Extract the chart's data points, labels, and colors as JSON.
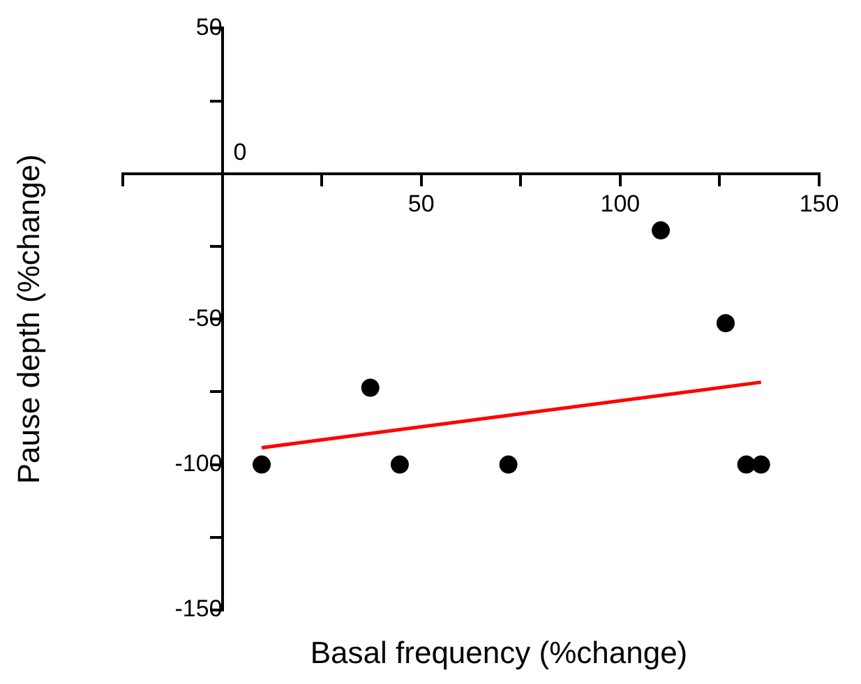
{
  "chart_data": {
    "type": "scatter",
    "xlabel": "Basal frequency (%change)",
    "ylabel": "Pause depth (%change)",
    "xlim": [
      -25,
      150
    ],
    "ylim": [
      -150,
      50
    ],
    "xticks": [
      {
        "value": -25,
        "label": null
      },
      {
        "value": 0,
        "label": null
      },
      {
        "value": 25,
        "label": null
      },
      50,
      {
        "value": 75,
        "label": null
      },
      100,
      {
        "value": 125,
        "label": null
      },
      150
    ],
    "yticks": [
      -150,
      {
        "value": -125,
        "label": null
      },
      -100,
      {
        "value": -75,
        "label": null
      },
      -50,
      {
        "value": -25,
        "label": null
      },
      {
        "value": 0,
        "label": null
      },
      {
        "value": 25,
        "label": null
      },
      50
    ],
    "annotations": [
      "0"
    ],
    "grid": false,
    "legend": false,
    "series": [
      {
        "marker": "circle",
        "color": "#000000",
        "x": [
          9.9,
          37.2,
          44.6,
          71.9,
          110.2,
          126.5,
          131.7,
          135.4
        ],
        "values": [
          -100,
          -73.6,
          -100,
          -100,
          -19.5,
          -51.4,
          -100,
          -100
        ]
      },
      {
        "type": "line",
        "color": "#ff0000",
        "x": [
          9.9,
          135.4
        ],
        "values": [
          -94.2,
          -71.7
        ]
      }
    ]
  }
}
